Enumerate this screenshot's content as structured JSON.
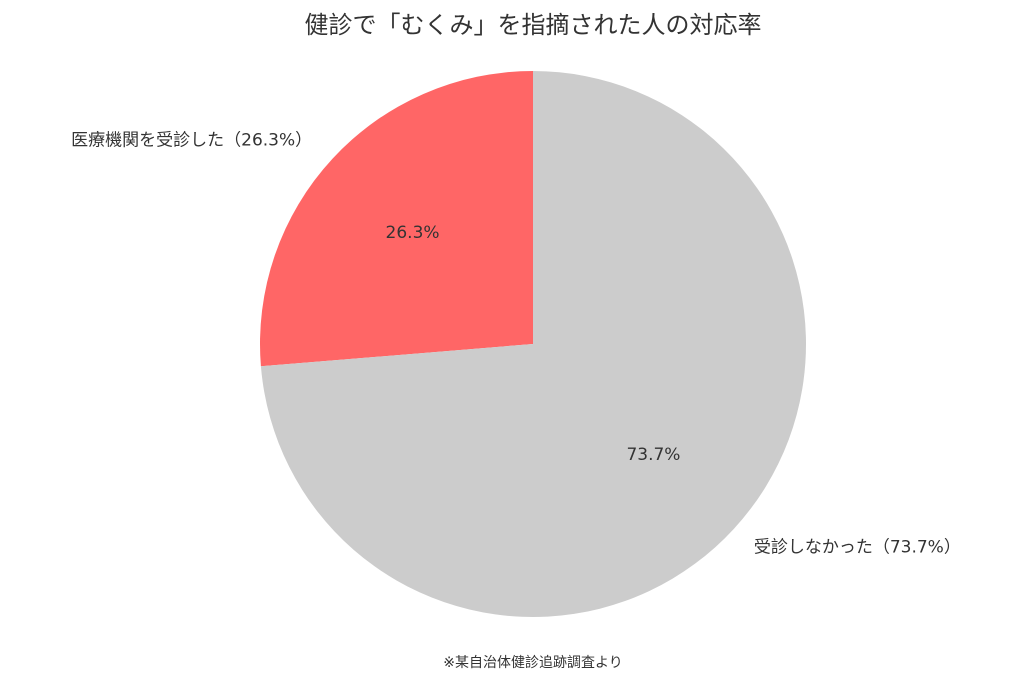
{
  "chart_data": {
    "type": "pie",
    "title": "健診で「むくみ」を指摘された人の対応率",
    "categories": [
      "医療機関を受診した（26.3%）",
      "受診しなかった（73.7%）"
    ],
    "values": [
      26.3,
      73.7
    ],
    "value_labels": [
      "26.3%",
      "73.7%"
    ],
    "colors": [
      "#ff6666",
      "#cccccc"
    ],
    "footnote": "※某自治体健診追跡調査より"
  }
}
